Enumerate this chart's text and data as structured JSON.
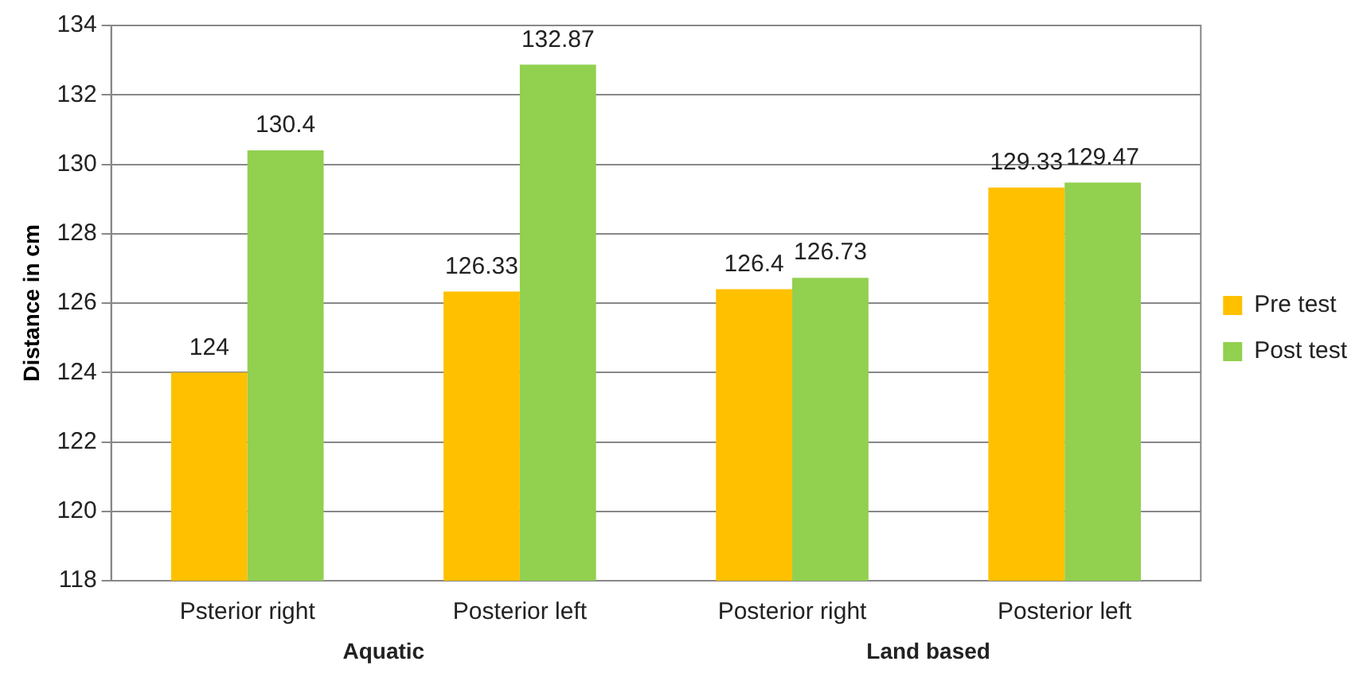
{
  "chart_data": {
    "type": "bar",
    "ylabel": "Distance in cm",
    "categories": [
      "Psterior right",
      "Posterior left",
      "Posterior right",
      "Posterior left"
    ],
    "series": [
      {
        "name": "Pre test",
        "color": "#ffc000",
        "values": [
          124,
          126.33,
          126.4,
          129.33
        ]
      },
      {
        "name": "Post test",
        "color": "#92d050",
        "values": [
          130.4,
          132.87,
          126.73,
          129.47
        ]
      }
    ],
    "ylim": [
      118,
      134
    ],
    "yticks": [
      118,
      120,
      122,
      124,
      126,
      128,
      130,
      132,
      134
    ],
    "grid": "y",
    "legend": "right",
    "data_labels": true,
    "annotations": [
      "Aquatic",
      "Land based"
    ]
  }
}
